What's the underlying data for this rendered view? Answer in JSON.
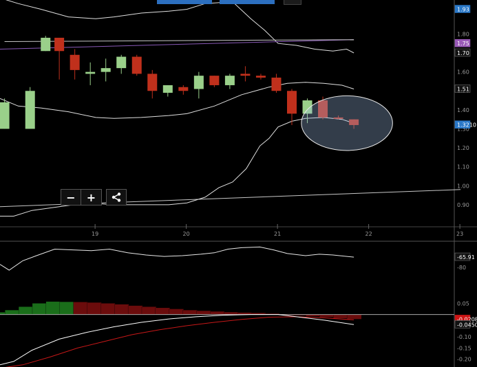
{
  "controls": {
    "zoom_out": "−",
    "zoom_in": "+",
    "share": "share-icon"
  },
  "colors": {
    "background": "#000000",
    "up_candle": "#9ad08a",
    "down_candle": "#c0301c",
    "band_line": "#e0e0e0",
    "ma_line": "#8a5ab8",
    "flat_line": "#c8c8c8",
    "hist_up": "#1a6e1a",
    "hist_down": "#6b0c0c",
    "signal_line": "#c81818",
    "macd_line": "#ffffff",
    "axis_label": "#9a9a9a",
    "price_tag": "#2a78c8",
    "ma_tag": "#9a5ab8",
    "neg_tag": "#cc1515"
  },
  "chart_data": [
    {
      "type": "candlestick",
      "x_ticks": [
        "19",
        "20",
        "21",
        "22",
        "23"
      ],
      "y_ticks": [
        "1.80",
        "1.70",
        "1.60",
        "1.50",
        "1.40",
        "1.30",
        "1.20",
        "1.10",
        "1.00",
        "0.90"
      ],
      "ylim": [
        0.82,
        1.95
      ],
      "price_tags": [
        {
          "label": "1.93",
          "value": 1.93,
          "style": "blue"
        },
        {
          "label": "1.75",
          "value": 1.75,
          "style": "purple"
        },
        {
          "label": "1.70",
          "value": 1.7,
          "style": "white"
        },
        {
          "label": "1.51",
          "value": 1.51,
          "style": "white"
        },
        {
          "label": "1.3210",
          "value": 1.321,
          "style": "blue"
        }
      ],
      "candles": [
        {
          "x": 18.0,
          "open": 1.3,
          "high": 1.46,
          "low": 1.3,
          "close": 1.44
        },
        {
          "x": 18.28,
          "open": 1.3,
          "high": 1.52,
          "low": 1.3,
          "close": 1.5
        },
        {
          "x": 18.45,
          "open": 1.71,
          "high": 1.79,
          "low": 1.71,
          "close": 1.78
        },
        {
          "x": 18.6,
          "open": 1.78,
          "high": 1.78,
          "low": 1.56,
          "close": 1.71
        },
        {
          "x": 18.77,
          "open": 1.69,
          "high": 1.72,
          "low": 1.56,
          "close": 1.61
        },
        {
          "x": 18.94,
          "open": 1.59,
          "high": 1.65,
          "low": 1.53,
          "close": 1.6
        },
        {
          "x": 19.11,
          "open": 1.6,
          "high": 1.67,
          "low": 1.55,
          "close": 1.62
        },
        {
          "x": 19.28,
          "open": 1.62,
          "high": 1.69,
          "low": 1.59,
          "close": 1.68
        },
        {
          "x": 19.45,
          "open": 1.68,
          "high": 1.69,
          "low": 1.58,
          "close": 1.59
        },
        {
          "x": 19.62,
          "open": 1.59,
          "high": 1.61,
          "low": 1.46,
          "close": 1.5
        },
        {
          "x": 19.79,
          "open": 1.49,
          "high": 1.53,
          "low": 1.47,
          "close": 1.53
        },
        {
          "x": 19.96,
          "open": 1.52,
          "high": 1.53,
          "low": 1.48,
          "close": 1.5
        },
        {
          "x": 20.13,
          "open": 1.51,
          "high": 1.6,
          "low": 1.46,
          "close": 1.58
        },
        {
          "x": 20.3,
          "open": 1.58,
          "high": 1.58,
          "low": 1.52,
          "close": 1.53
        },
        {
          "x": 20.47,
          "open": 1.53,
          "high": 1.59,
          "low": 1.51,
          "close": 1.58
        },
        {
          "x": 20.64,
          "open": 1.59,
          "high": 1.63,
          "low": 1.55,
          "close": 1.58
        },
        {
          "x": 20.81,
          "open": 1.58,
          "high": 1.59,
          "low": 1.56,
          "close": 1.57
        },
        {
          "x": 20.98,
          "open": 1.57,
          "high": 1.59,
          "low": 1.49,
          "close": 1.5
        },
        {
          "x": 21.15,
          "open": 1.5,
          "high": 1.51,
          "low": 1.32,
          "close": 1.38
        },
        {
          "x": 21.32,
          "open": 1.38,
          "high": 1.46,
          "low": 1.33,
          "close": 1.45
        },
        {
          "x": 21.49,
          "open": 1.45,
          "high": 1.47,
          "low": 1.35,
          "close": 1.36
        },
        {
          "x": 21.66,
          "open": 1.36,
          "high": 1.37,
          "low": 1.35,
          "close": 1.355
        },
        {
          "x": 21.83,
          "open": 1.35,
          "high": 1.35,
          "low": 1.3,
          "close": 1.32
        }
      ],
      "upper_band": [
        {
          "x": 17.95,
          "y": 1.99
        },
        {
          "x": 18.15,
          "y": 1.96
        },
        {
          "x": 18.4,
          "y": 1.93
        },
        {
          "x": 18.7,
          "y": 1.89
        },
        {
          "x": 19.0,
          "y": 1.88
        },
        {
          "x": 19.2,
          "y": 1.89
        },
        {
          "x": 19.5,
          "y": 1.91
        },
        {
          "x": 19.8,
          "y": 1.92
        },
        {
          "x": 20.0,
          "y": 1.93
        },
        {
          "x": 20.2,
          "y": 1.96
        },
        {
          "x": 20.5,
          "y": 1.97
        },
        {
          "x": 20.7,
          "y": 1.88
        },
        {
          "x": 20.85,
          "y": 1.82
        },
        {
          "x": 21.0,
          "y": 1.75
        },
        {
          "x": 21.2,
          "y": 1.74
        },
        {
          "x": 21.4,
          "y": 1.72
        },
        {
          "x": 21.6,
          "y": 1.71
        },
        {
          "x": 21.75,
          "y": 1.72
        },
        {
          "x": 21.83,
          "y": 1.7
        }
      ],
      "middle_band": [
        {
          "x": 17.95,
          "y": 1.46
        },
        {
          "x": 18.15,
          "y": 1.42
        },
        {
          "x": 18.4,
          "y": 1.41
        },
        {
          "x": 18.7,
          "y": 1.39
        },
        {
          "x": 19.0,
          "y": 1.36
        },
        {
          "x": 19.2,
          "y": 1.355
        },
        {
          "x": 19.5,
          "y": 1.36
        },
        {
          "x": 19.8,
          "y": 1.37
        },
        {
          "x": 20.0,
          "y": 1.38
        },
        {
          "x": 20.3,
          "y": 1.42
        },
        {
          "x": 20.6,
          "y": 1.48
        },
        {
          "x": 20.9,
          "y": 1.52
        },
        {
          "x": 21.1,
          "y": 1.54
        },
        {
          "x": 21.3,
          "y": 1.545
        },
        {
          "x": 21.5,
          "y": 1.54
        },
        {
          "x": 21.7,
          "y": 1.53
        },
        {
          "x": 21.83,
          "y": 1.51
        }
      ],
      "lower_band": [
        {
          "x": 17.95,
          "y": 0.84
        },
        {
          "x": 18.1,
          "y": 0.84
        },
        {
          "x": 18.3,
          "y": 0.87
        },
        {
          "x": 18.6,
          "y": 0.89
        },
        {
          "x": 18.9,
          "y": 0.91
        },
        {
          "x": 19.2,
          "y": 0.9
        },
        {
          "x": 19.5,
          "y": 0.9
        },
        {
          "x": 19.8,
          "y": 0.9
        },
        {
          "x": 20.0,
          "y": 0.91
        },
        {
          "x": 20.2,
          "y": 0.94
        },
        {
          "x": 20.35,
          "y": 0.99
        },
        {
          "x": 20.5,
          "y": 1.02
        },
        {
          "x": 20.65,
          "y": 1.09
        },
        {
          "x": 20.8,
          "y": 1.21
        },
        {
          "x": 20.9,
          "y": 1.25
        },
        {
          "x": 21.0,
          "y": 1.31
        },
        {
          "x": 21.15,
          "y": 1.34
        },
        {
          "x": 21.3,
          "y": 1.355
        },
        {
          "x": 21.5,
          "y": 1.36
        },
        {
          "x": 21.7,
          "y": 1.35
        },
        {
          "x": 21.83,
          "y": 1.33
        }
      ],
      "ma_line": [
        {
          "x": 17.95,
          "y": 1.72
        },
        {
          "x": 21.83,
          "y": 1.77
        }
      ],
      "flat_line_top": [
        {
          "x": 18.0,
          "y": 1.76
        },
        {
          "x": 21.83,
          "y": 1.77
        }
      ],
      "long_line": [
        {
          "x": 17.95,
          "y": 0.89
        },
        {
          "x": 23.0,
          "y": 0.98
        }
      ],
      "highlight_circle": {
        "cx": 21.83,
        "cy": 1.33,
        "rx_days": 0.5,
        "ry_price": 0.15
      }
    },
    {
      "type": "line",
      "y_ticks": [
        "-80"
      ],
      "price_tags": [
        {
          "label": "-65.91",
          "value": -65.91,
          "style": "white"
        }
      ],
      "ylim": [
        -100,
        -45
      ],
      "series": [
        {
          "points": [
            {
              "x": 17.95,
              "y": -76
            },
            {
              "x": 18.05,
              "y": -84
            },
            {
              "x": 18.2,
              "y": -71
            },
            {
              "x": 18.35,
              "y": -64
            },
            {
              "x": 18.55,
              "y": -55
            },
            {
              "x": 18.75,
              "y": -56
            },
            {
              "x": 18.95,
              "y": -57
            },
            {
              "x": 19.15,
              "y": -55
            },
            {
              "x": 19.35,
              "y": -60
            },
            {
              "x": 19.55,
              "y": -63
            },
            {
              "x": 19.75,
              "y": -65
            },
            {
              "x": 19.95,
              "y": -64
            },
            {
              "x": 20.15,
              "y": -62
            },
            {
              "x": 20.3,
              "y": -60
            },
            {
              "x": 20.45,
              "y": -55
            },
            {
              "x": 20.6,
              "y": -53
            },
            {
              "x": 20.8,
              "y": -52
            },
            {
              "x": 20.95,
              "y": -56
            },
            {
              "x": 21.1,
              "y": -61
            },
            {
              "x": 21.3,
              "y": -64
            },
            {
              "x": 21.45,
              "y": -62
            },
            {
              "x": 21.6,
              "y": -63
            },
            {
              "x": 21.83,
              "y": -66
            }
          ]
        }
      ]
    },
    {
      "type": "histogram",
      "y_ticks": [
        "0.05",
        "-0.10",
        "-0.15",
        "-0.20"
      ],
      "price_tags": [
        {
          "label": "-0.0208",
          "value": -0.0208,
          "style": "red"
        },
        {
          "label": "-0.0450",
          "value": -0.045,
          "style": "white"
        }
      ],
      "ylim": [
        -0.235,
        0.085
      ],
      "histogram": [
        {
          "x": 18.0,
          "value": 0.01
        },
        {
          "x": 18.08,
          "value": 0.02
        },
        {
          "x": 18.23,
          "value": 0.035
        },
        {
          "x": 18.38,
          "value": 0.05
        },
        {
          "x": 18.53,
          "value": 0.058
        },
        {
          "x": 18.68,
          "value": 0.057
        },
        {
          "x": 18.83,
          "value": 0.056
        },
        {
          "x": 18.98,
          "value": 0.054
        },
        {
          "x": 19.13,
          "value": 0.05
        },
        {
          "x": 19.28,
          "value": 0.046
        },
        {
          "x": 19.43,
          "value": 0.04
        },
        {
          "x": 19.58,
          "value": 0.035
        },
        {
          "x": 19.73,
          "value": 0.03
        },
        {
          "x": 19.88,
          "value": 0.025
        },
        {
          "x": 20.03,
          "value": 0.02
        },
        {
          "x": 20.18,
          "value": 0.017
        },
        {
          "x": 20.33,
          "value": 0.014
        },
        {
          "x": 20.48,
          "value": 0.011
        },
        {
          "x": 20.63,
          "value": 0.009
        },
        {
          "x": 20.78,
          "value": 0.007
        },
        {
          "x": 20.93,
          "value": 0.004
        },
        {
          "x": 21.08,
          "value": 0.0
        },
        {
          "x": 21.23,
          "value": -0.004
        },
        {
          "x": 21.38,
          "value": -0.008
        },
        {
          "x": 21.53,
          "value": -0.012
        },
        {
          "x": 21.68,
          "value": -0.017
        },
        {
          "x": 21.83,
          "value": -0.021
        }
      ],
      "macd_line": [
        {
          "x": 17.95,
          "y": -0.225
        },
        {
          "x": 18.1,
          "y": -0.21
        },
        {
          "x": 18.3,
          "y": -0.16
        },
        {
          "x": 18.6,
          "y": -0.11
        },
        {
          "x": 18.9,
          "y": -0.08
        },
        {
          "x": 19.2,
          "y": -0.055
        },
        {
          "x": 19.5,
          "y": -0.035
        },
        {
          "x": 19.8,
          "y": -0.02
        },
        {
          "x": 20.1,
          "y": -0.01
        },
        {
          "x": 20.4,
          "y": -0.003
        },
        {
          "x": 20.7,
          "y": 0.0
        },
        {
          "x": 21.0,
          "y": 0.0
        },
        {
          "x": 21.2,
          "y": -0.01
        },
        {
          "x": 21.5,
          "y": -0.025
        },
        {
          "x": 21.83,
          "y": -0.045
        }
      ],
      "signal_line": [
        {
          "x": 17.95,
          "y": -0.24
        },
        {
          "x": 18.2,
          "y": -0.225
        },
        {
          "x": 18.5,
          "y": -0.19
        },
        {
          "x": 18.8,
          "y": -0.15
        },
        {
          "x": 19.1,
          "y": -0.12
        },
        {
          "x": 19.4,
          "y": -0.09
        },
        {
          "x": 19.7,
          "y": -0.068
        },
        {
          "x": 20.0,
          "y": -0.05
        },
        {
          "x": 20.3,
          "y": -0.035
        },
        {
          "x": 20.6,
          "y": -0.022
        },
        {
          "x": 20.9,
          "y": -0.012
        },
        {
          "x": 21.2,
          "y": -0.01
        },
        {
          "x": 21.5,
          "y": -0.015
        },
        {
          "x": 21.83,
          "y": -0.024
        }
      ]
    }
  ]
}
